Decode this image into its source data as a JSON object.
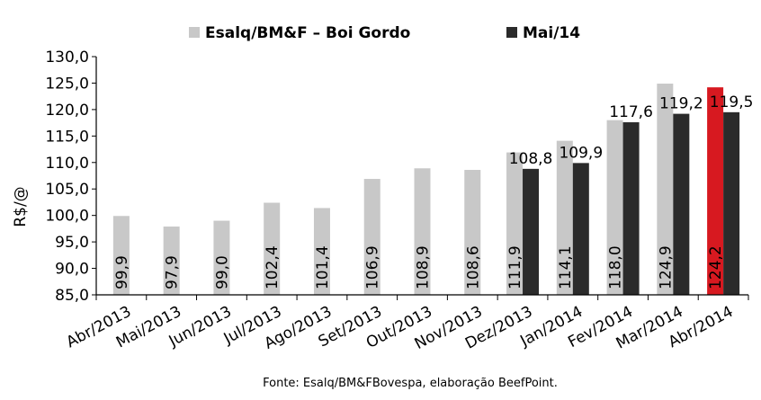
{
  "chart_data": {
    "type": "bar",
    "title": "",
    "xlabel": "",
    "ylabel": "R$/@",
    "ylim": [
      85,
      130
    ],
    "yticks": [
      "130,0",
      "125,0",
      "120,0",
      "115,0",
      "110,0",
      "105,0",
      "100,0",
      "95,0",
      "90,0",
      "85,0"
    ],
    "categories": [
      "Abr/2013",
      "Mai/2013",
      "Jun/2013",
      "Jul/2013",
      "Ago/2013",
      "Set/2013",
      "Out/2013",
      "Nov/2013",
      "Dez/2013",
      "Jan/2014",
      "Fev/2014",
      "Mar/2014",
      "Abr/2014"
    ],
    "series": [
      {
        "name": "Esalq/BM&F – Boi Gordo",
        "color": "#c8c8c8",
        "highlight_color": "#d71920",
        "highlight_index": 12,
        "values": [
          99.9,
          97.9,
          99.0,
          102.4,
          101.4,
          106.9,
          108.9,
          108.6,
          111.9,
          114.1,
          118.0,
          124.9,
          124.2
        ],
        "labels": [
          "99,9",
          "97,9",
          "99,0",
          "102,4",
          "101,4",
          "106,9",
          "108,9",
          "108,6",
          "111,9",
          "114,1",
          "118,0",
          "124,9",
          "124,2"
        ]
      },
      {
        "name": "Mai/14",
        "color": "#2b2b2b",
        "values": [
          null,
          null,
          null,
          null,
          null,
          null,
          null,
          null,
          108.8,
          109.9,
          117.6,
          119.2,
          119.5
        ],
        "labels": [
          "",
          "",
          "",
          "",
          "",
          "",
          "",
          "",
          "108,8",
          "109,9",
          "117,6",
          "119,2",
          "119,5"
        ]
      }
    ],
    "grid": false,
    "legend_position": "top",
    "source": "Fonte: Esalq/BM&FBovespa, elaboração BeefPoint."
  }
}
